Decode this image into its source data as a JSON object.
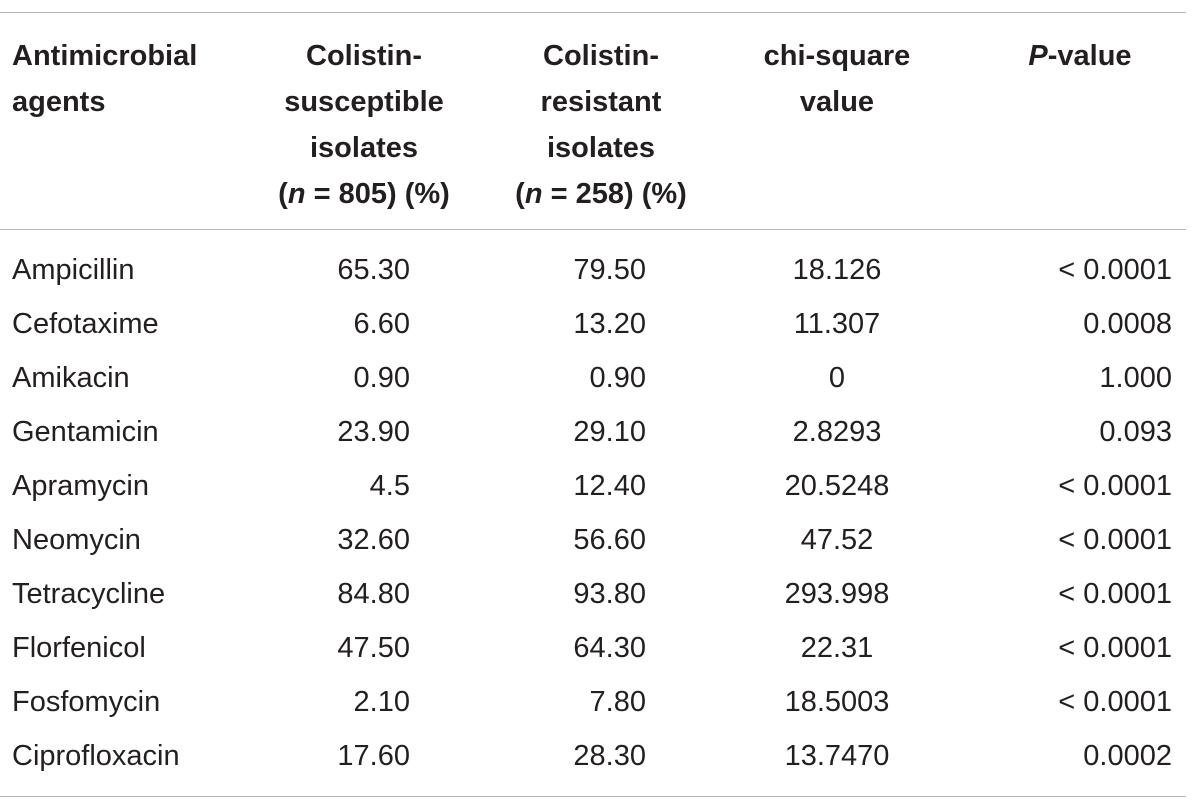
{
  "table": {
    "headers": {
      "agent": [
        "Antimicrobial",
        "agents"
      ],
      "susceptible": [
        "Colistin-",
        "susceptible",
        "isolates"
      ],
      "susceptible_n_italic": "n",
      "susceptible_n_rest": " = 805) (%)",
      "resistant": [
        "Colistin-",
        "resistant",
        "isolates"
      ],
      "resistant_n_italic": "n",
      "resistant_n_rest": " = 258) (%)",
      "chi": [
        "chi-square",
        "value"
      ],
      "p_italic": "P",
      "p_rest": "-value"
    },
    "rows": [
      {
        "agent": "Ampicillin",
        "susceptible": "65.30",
        "resistant": "79.50",
        "chi": "18.126",
        "p": "< 0.0001"
      },
      {
        "agent": "Cefotaxime",
        "susceptible": "6.60",
        "resistant": "13.20",
        "chi": "11.307",
        "p": "0.0008"
      },
      {
        "agent": "Amikacin",
        "susceptible": "0.90",
        "resistant": "0.90",
        "chi": "0",
        "p": "1.000"
      },
      {
        "agent": "Gentamicin",
        "susceptible": "23.90",
        "resistant": "29.10",
        "chi": "2.8293",
        "p": "0.093"
      },
      {
        "agent": "Apramycin",
        "susceptible": "4.5",
        "resistant": "12.40",
        "chi": "20.5248",
        "p": "< 0.0001"
      },
      {
        "agent": "Neomycin",
        "susceptible": "32.60",
        "resistant": "56.60",
        "chi": "47.52",
        "p": "< 0.0001"
      },
      {
        "agent": "Tetracycline",
        "susceptible": "84.80",
        "resistant": "93.80",
        "chi": "293.998",
        "p": "< 0.0001"
      },
      {
        "agent": "Florfenicol",
        "susceptible": "47.50",
        "resistant": "64.30",
        "chi": "22.31",
        "p": "< 0.0001"
      },
      {
        "agent": "Fosfomycin",
        "susceptible": "2.10",
        "resistant": "7.80",
        "chi": "18.5003",
        "p": "< 0.0001"
      },
      {
        "agent": "Ciprofloxacin",
        "susceptible": "17.60",
        "resistant": "28.30",
        "chi": "13.7470",
        "p": "0.0002"
      }
    ]
  }
}
